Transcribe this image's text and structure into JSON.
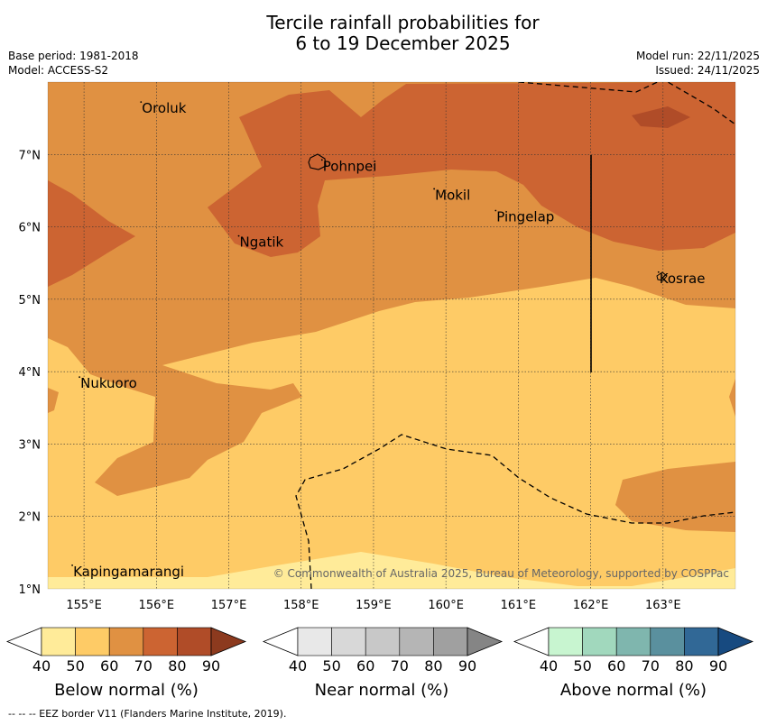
{
  "title_line1": "Tercile rainfall probabilities for",
  "title_line2": "6 to 19 December 2025",
  "meta": {
    "base_period": "Base period: 1981-2018",
    "model": "Model: ACCESS-S2",
    "model_run": "Model run: 22/11/2025",
    "issued": "Issued: 24/11/2025"
  },
  "map": {
    "lon_range": [
      154.5,
      164.0
    ],
    "lat_range": [
      1.0,
      8.0
    ],
    "lon_ticks": [
      "155°E",
      "156°E",
      "157°E",
      "158°E",
      "159°E",
      "160°E",
      "161°E",
      "162°E",
      "163°E"
    ],
    "lat_ticks": [
      "1°N",
      "2°N",
      "3°N",
      "4°N",
      "5°N",
      "6°N",
      "7°N"
    ],
    "places": [
      {
        "name": "Oroluk",
        "lon": 155.8,
        "lat": 7.65
      },
      {
        "name": "Pohnpei",
        "lon": 158.3,
        "lat": 6.85
      },
      {
        "name": "Mokil",
        "lon": 159.85,
        "lat": 6.45
      },
      {
        "name": "Pingelap",
        "lon": 160.7,
        "lat": 6.15
      },
      {
        "name": "Ngatik",
        "lon": 157.15,
        "lat": 5.8
      },
      {
        "name": "Kosrae",
        "lon": 162.95,
        "lat": 5.3
      },
      {
        "name": "Nukuoro",
        "lon": 154.95,
        "lat": 3.85
      },
      {
        "name": "Kapingamarangi",
        "lon": 154.85,
        "lat": 1.25
      }
    ],
    "copyright": "© Commonwealth of Australia 2025, Bureau of Meteorology, supported by COSPPac"
  },
  "legend": {
    "bars": [
      {
        "label": "Below normal (%)",
        "colors": [
          "#ffeb99",
          "#fecb66",
          "#e09142",
          "#cc6432",
          "#b04c28",
          "#8c3a1e"
        ]
      },
      {
        "label": "Near normal (%)",
        "colors": [
          "#e8e8e8",
          "#d8d8d8",
          "#c8c8c8",
          "#b5b5b5",
          "#a0a0a0",
          "#858585"
        ]
      },
      {
        "label": "Above normal (%)",
        "colors": [
          "#c8f5d0",
          "#a1d8bd",
          "#7fb6ae",
          "#5a909e",
          "#316896",
          "#174a80"
        ]
      }
    ],
    "ticks": [
      "40",
      "50",
      "60",
      "70",
      "80",
      "90"
    ]
  },
  "footnote": "--  --  -- EEZ border V11 (Flanders Marine Institute, 2019)."
}
